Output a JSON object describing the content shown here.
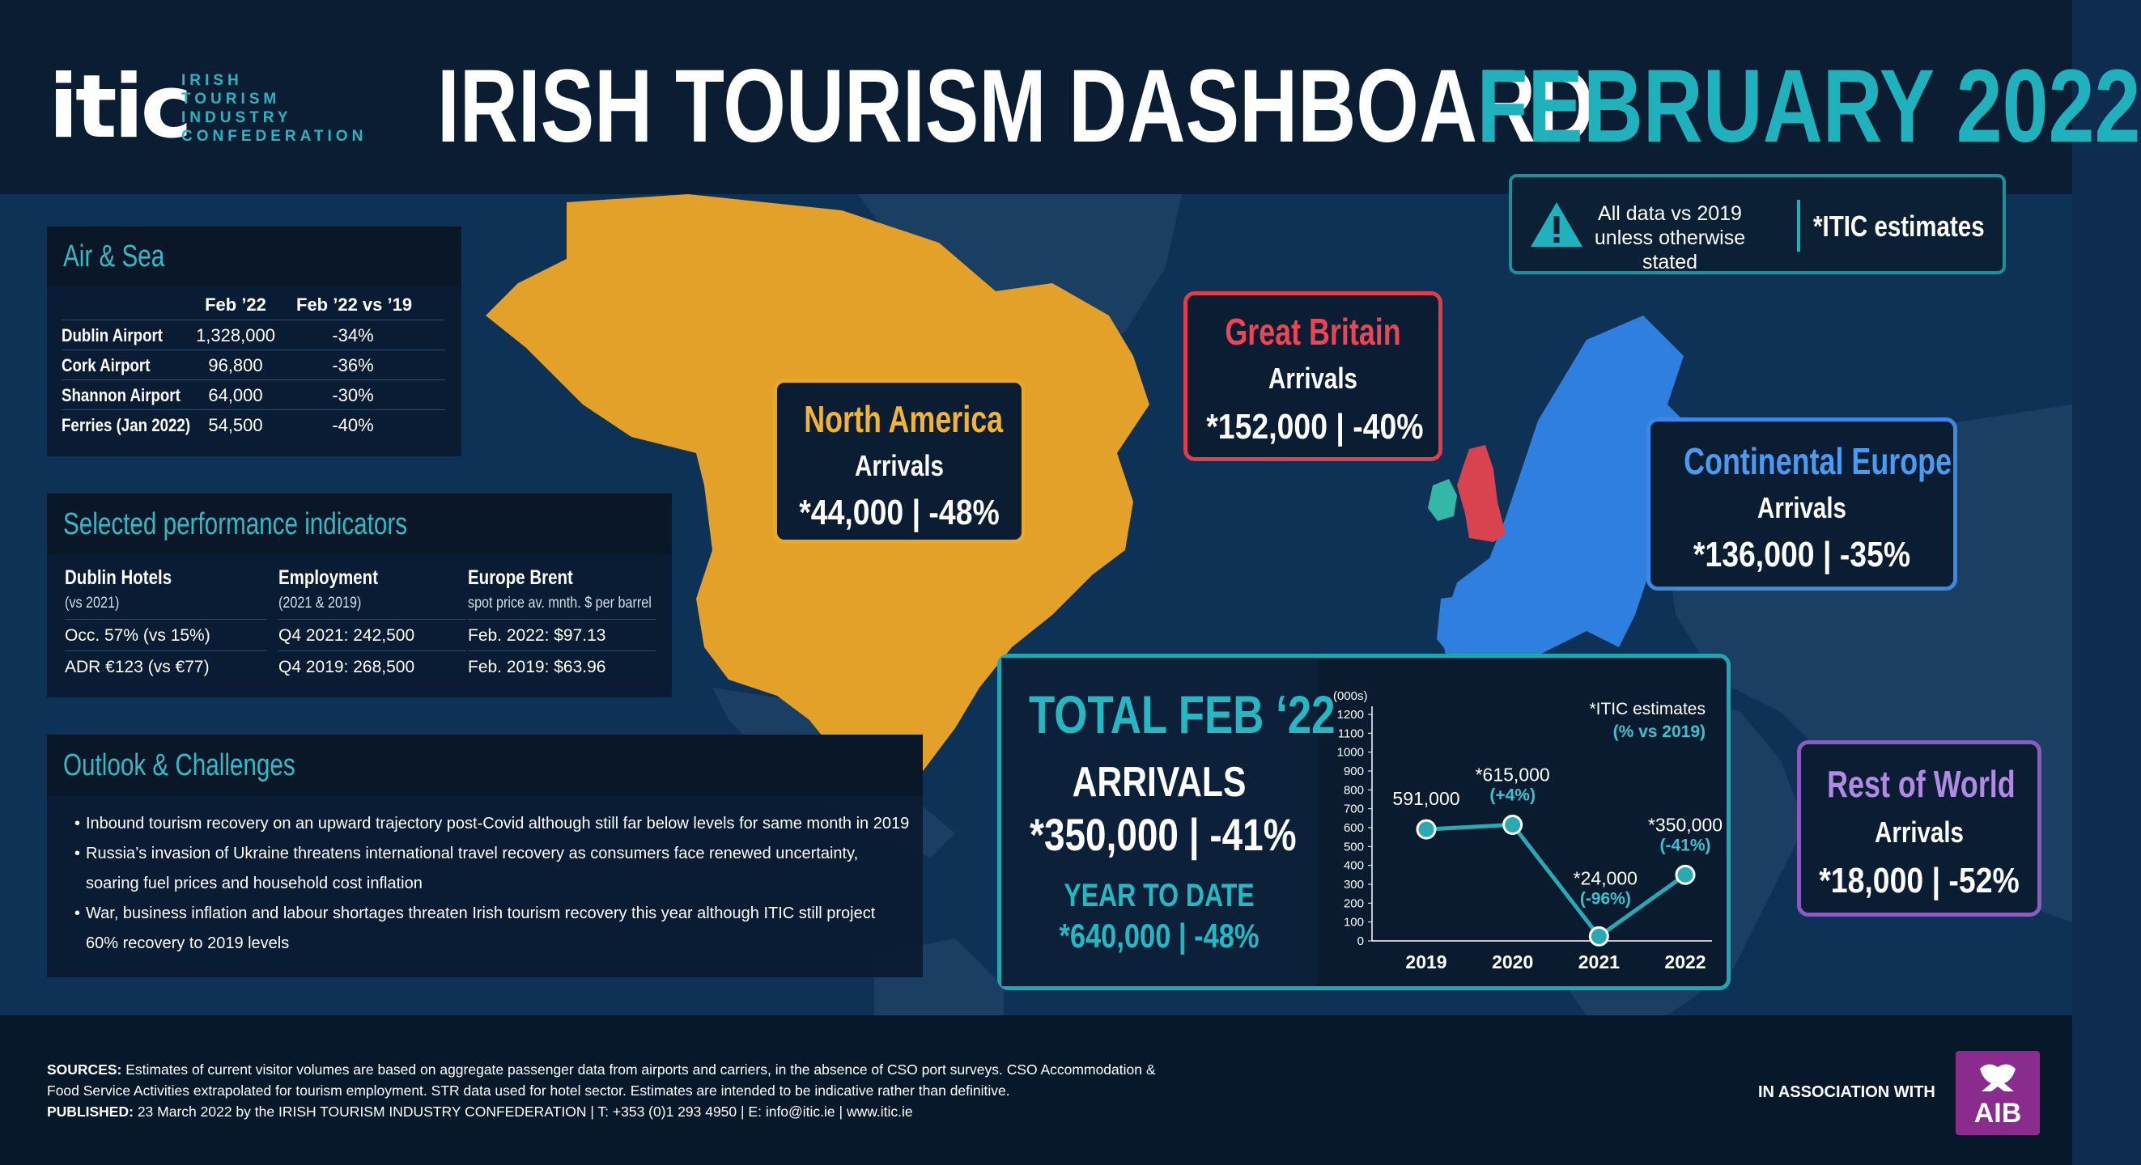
{
  "header": {
    "logo_word": "itic",
    "logo_sub": [
      "IRISH",
      "TOURISM",
      "INDUSTRY",
      "CONFEDERATION"
    ],
    "title": "IRISH TOURISM DASHBOARD",
    "date": "FEBRUARY 2022"
  },
  "notice": {
    "text": "All data vs 2019 unless otherwise stated",
    "estimates": "*ITIC estimates"
  },
  "air_sea": {
    "title": "Air & Sea",
    "columns": [
      "",
      "Feb ’22",
      "Feb ’22 vs ’19"
    ],
    "rows": [
      {
        "name": "Dublin Airport",
        "feb22": "1,328,000",
        "vs19": "-34%"
      },
      {
        "name": "Cork Airport",
        "feb22": "96,800",
        "vs19": "-36%"
      },
      {
        "name": "Shannon Airport",
        "feb22": "64,000",
        "vs19": "-30%"
      },
      {
        "name": "Ferries (Jan 2022)",
        "feb22": "54,500",
        "vs19": "-40%"
      }
    ]
  },
  "indicators": {
    "title": "Selected performance indicators",
    "columns": [
      {
        "heading": "Dublin Hotels",
        "sub": "(vs 2021)",
        "values": [
          "Occ. 57% (vs 15%)",
          "ADR €123 (vs €77)"
        ]
      },
      {
        "heading": "Employment",
        "sub": "(2021 & 2019)",
        "values": [
          "Q4 2021: 242,500",
          "Q4 2019: 268,500"
        ]
      },
      {
        "heading": "Europe Brent",
        "sub": "spot price av. mnth. $ per barrel",
        "values": [
          "Feb. 2022: $97.13",
          "Feb. 2019: $63.96"
        ]
      }
    ]
  },
  "outlook": {
    "title": "Outlook & Challenges",
    "items": [
      "Inbound tourism recovery on an upward trajectory post-Covid although still far below levels for same month in 2019",
      "Russia’s invasion of Ukraine threatens international travel recovery as consumers face renewed uncertainty, soaring fuel prices and household cost inflation",
      "War, business inflation and labour shortages threaten Irish tourism recovery this year although ITIC still project 60% recovery to 2019 levels"
    ]
  },
  "regions": {
    "north_america": {
      "name": "North America",
      "label": "Arrivals",
      "value": "*44,000 | -48%"
    },
    "great_britain": {
      "name": "Great Britain",
      "label": "Arrivals",
      "value": "*152,000 | -40%"
    },
    "continental_europe": {
      "name": "Continental Europe",
      "label": "Arrivals",
      "value": "*136,000 | -35%"
    },
    "rest_of_world": {
      "name": "Rest of World",
      "label": "Arrivals",
      "value": "*18,000 | -52%"
    }
  },
  "total": {
    "title": "TOTAL FEB ‘22",
    "arrivals_label": "ARRIVALS",
    "arrivals_value": "*350,000 | -41%",
    "ytd_label": "YEAR TO DATE",
    "ytd_value": "*640,000 | -48%"
  },
  "chart_data": {
    "type": "line",
    "title": "",
    "ylabel": "(000s)",
    "xlabel": "",
    "x": [
      "2019",
      "2020",
      "2021",
      "2022"
    ],
    "values": [
      591,
      615,
      24,
      350
    ],
    "ylim": [
      0,
      1200
    ],
    "yticks": [
      0,
      100,
      200,
      300,
      400,
      500,
      600,
      700,
      800,
      900,
      1000,
      1100,
      1200
    ],
    "point_labels": [
      "591,000",
      "*615,000",
      "*24,000",
      "*350,000"
    ],
    "pct_labels": [
      "",
      "(+4%)",
      "(-96%)",
      "(-41%)"
    ],
    "note": "*ITIC estimates",
    "note_sub": "(% vs 2019)",
    "colors": {
      "line": "#2aa9b3",
      "text": "#ffffff",
      "accent": "#3cc2cc"
    }
  },
  "footer": {
    "sources_label": "SOURCES:",
    "sources_text": "Estimates of current visitor volumes are based on aggregate passenger data from airports and carriers, in the absence of CSO port surveys. CSO Accommodation & Food Service Activities extrapolated for tourism employment. STR data used for hotel sector. Estimates are intended to be indicative rather than definitive.",
    "published_label": "PUBLISHED:",
    "published_text": "23 March 2022 by the IRISH TOURISM INDUSTRY CONFEDERATION  |  T: +353 (0)1 293 4950  |  E: info@itic.ie  |  www.itic.ie",
    "assoc": "IN ASSOCIATION WITH",
    "aib": "AIB"
  },
  "colors": {
    "background": "#0d2c4f",
    "teal": "#1fb2bc",
    "north_america": "#e8a92a",
    "great_britain": "#e03c4a",
    "continental_europe": "#3c88e2",
    "rest_of_world": "#8a5cc2"
  }
}
